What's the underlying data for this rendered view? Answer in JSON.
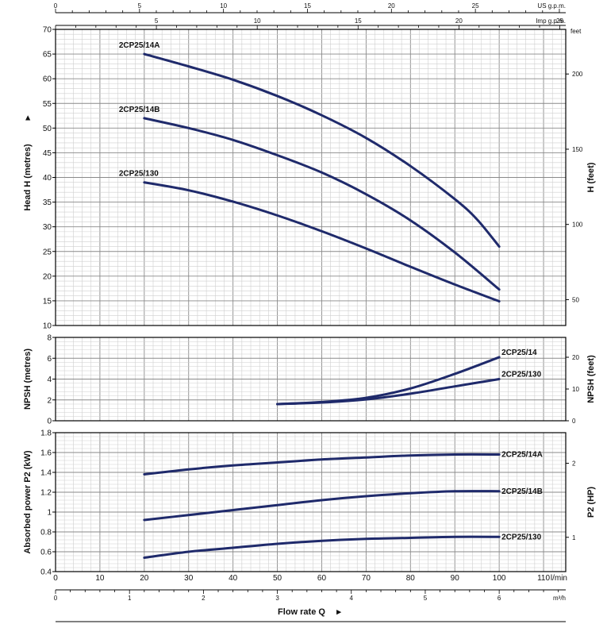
{
  "chart_data": {
    "type": "line",
    "x_axis": {
      "label": "Flow rate Q",
      "arrow": "▸",
      "lmin_unit": "l/min",
      "lmin_ticks": [
        "0",
        "10",
        "20",
        "30",
        "40",
        "50",
        "60",
        "70",
        "80",
        "90",
        "100",
        "110"
      ],
      "m3h_unit": "m³/h",
      "m3h_ticks": [
        "0",
        "1",
        "2",
        "3",
        "4",
        "5",
        "6"
      ],
      "usgpm_unit": "US g.p.m.",
      "usgpm_ticks": [
        "0",
        "5",
        "10",
        "15",
        "20",
        "25"
      ],
      "impgpm_unit": "Imp g.p.m.",
      "impgpm_ticks": [
        "5",
        "10",
        "15",
        "20",
        "25"
      ],
      "xlim": [
        0,
        115
      ]
    },
    "panels": [
      {
        "id": "head",
        "ylabel": "Head H  (metres)",
        "ylabel_arrow": "▸",
        "ylabel_right": "H  (feet)",
        "right_unit": "feet",
        "ylim": [
          10,
          70
        ],
        "yticks": [
          "10",
          "15",
          "20",
          "25",
          "30",
          "35",
          "40",
          "45",
          "50",
          "55",
          "60",
          "65",
          "70"
        ],
        "right_ticks": [
          "50",
          "100",
          "150",
          "200"
        ],
        "series": [
          {
            "name": "2CP25/14A",
            "x": [
              20,
              30,
              40,
              50,
              60,
              70,
              80,
              90,
              95,
              100
            ],
            "y": [
              65,
              62.5,
              59.8,
              56.5,
              52.6,
              48,
              42.3,
              35.6,
              31.5,
              26
            ]
          },
          {
            "name": "2CP25/14B",
            "x": [
              20,
              30,
              40,
              50,
              60,
              70,
              80,
              90,
              100
            ],
            "y": [
              52,
              50,
              47.6,
              44.5,
              41,
              36.6,
              31.3,
              24.8,
              17.3
            ]
          },
          {
            "name": "2CP25/130",
            "x": [
              20,
              30,
              40,
              50,
              60,
              70,
              80,
              90,
              100
            ],
            "y": [
              39,
              37.4,
              35.1,
              32.3,
              29.1,
              25.6,
              21.9,
              18.3,
              14.9
            ]
          }
        ]
      },
      {
        "id": "npsh",
        "ylabel": "NPSH  (metres)",
        "ylabel_right": "NPSH  (feet)",
        "ylim": [
          0,
          8
        ],
        "yticks": [
          "0",
          "2",
          "4",
          "6",
          "8"
        ],
        "right_ticks": [
          "0",
          "10",
          "20"
        ],
        "series": [
          {
            "name": "2CP25/14",
            "x": [
              50,
              60,
              70,
              80,
              90,
              100
            ],
            "y": [
              1.6,
              1.8,
              2.2,
              3.1,
              4.5,
              6.1
            ]
          },
          {
            "name": "2CP25/130",
            "x": [
              50,
              60,
              70,
              80,
              90,
              100
            ],
            "y": [
              1.6,
              1.75,
              2.05,
              2.6,
              3.3,
              4.0
            ]
          }
        ]
      },
      {
        "id": "power",
        "ylabel": "Absorbed power  P2  (kW)",
        "ylabel_right": "P2  (HP)",
        "ylim": [
          0.4,
          1.8
        ],
        "yticks": [
          "0.4",
          "0.6",
          "0.8",
          "1",
          "1.2",
          "1.4",
          "1.6",
          "1.8"
        ],
        "right_ticks": [
          "1",
          "2"
        ],
        "series": [
          {
            "name": "2CP25/14A",
            "x": [
              20,
              30,
              40,
              50,
              60,
              70,
              80,
              90,
              100
            ],
            "y": [
              1.38,
              1.43,
              1.47,
              1.5,
              1.53,
              1.55,
              1.57,
              1.58,
              1.58
            ]
          },
          {
            "name": "2CP25/14B",
            "x": [
              20,
              30,
              40,
              50,
              60,
              70,
              80,
              90,
              100
            ],
            "y": [
              0.92,
              0.97,
              1.02,
              1.07,
              1.12,
              1.16,
              1.19,
              1.21,
              1.21
            ]
          },
          {
            "name": "2CP25/130",
            "x": [
              20,
              30,
              40,
              50,
              60,
              70,
              80,
              90,
              100
            ],
            "y": [
              0.54,
              0.6,
              0.64,
              0.68,
              0.71,
              0.73,
              0.74,
              0.75,
              0.75
            ]
          }
        ]
      }
    ],
    "colors": {
      "curve": "#1f2a6b",
      "grid": "#999999",
      "frame": "#000000"
    }
  }
}
